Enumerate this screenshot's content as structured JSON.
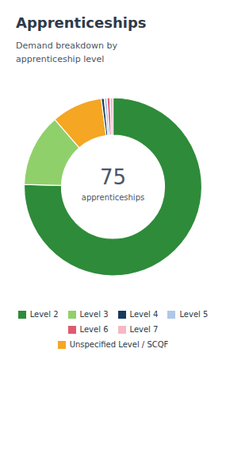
{
  "chart_data": {
    "type": "pie",
    "donut": true,
    "title": "Apprenticeships",
    "subtitle": "Demand breakdown by\napprenticeship level",
    "annotations": [
      "75",
      "apprenticeships"
    ],
    "categories": [
      "Level 2",
      "Level 3",
      "Unspecified Level / SCQF",
      "Level 4",
      "Level 5",
      "Level 6",
      "Level 7"
    ],
    "values": [
      57,
      10,
      7,
      0.4,
      0.4,
      0.4,
      0.4
    ],
    "colors": [
      "#2e8b3a",
      "#90d06a",
      "#f5a623",
      "#1a3a5c",
      "#b0c8e8",
      "#e05a6e",
      "#f5b8c4"
    ],
    "legend": "bottom",
    "legend_order": [
      "Level 2",
      "Level 3",
      "Level 4",
      "Level 5",
      "Level 6",
      "Level 7",
      "Unspecified Level / SCQF"
    ]
  }
}
